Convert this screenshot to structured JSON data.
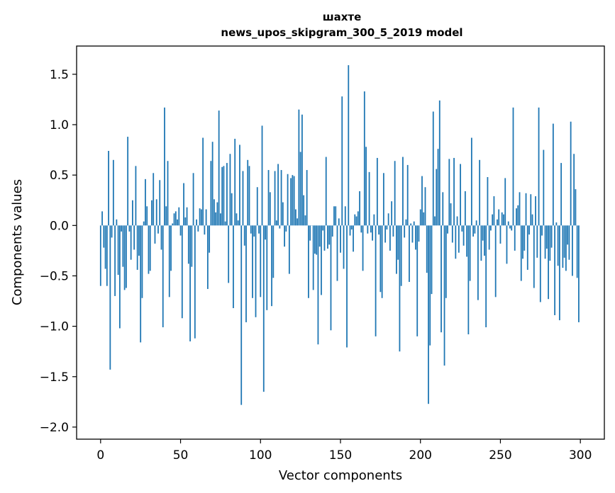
{
  "chart_data": {
    "type": "bar",
    "title": "шахте",
    "subtitle": "news_upos_skipgram_300_5_2019 model",
    "xlabel": "Vector components",
    "ylabel": "Components values",
    "xlim": [
      -15,
      315
    ],
    "ylim": [
      -2.12,
      1.78
    ],
    "xticks": [
      0,
      50,
      100,
      150,
      200,
      250,
      300
    ],
    "yticks": [
      -2.0,
      -1.5,
      -1.0,
      -0.5,
      0.0,
      0.5,
      1.0,
      1.5
    ],
    "ytick_labels": [
      "−2.0",
      "−1.5",
      "−1.0",
      "−0.5",
      "0.0",
      "0.5",
      "1.0",
      "1.5"
    ],
    "bar_color": "#1f77b4",
    "grid": false,
    "legend": "none",
    "values": [
      -0.6,
      0.14,
      -0.22,
      -0.43,
      -0.6,
      0.74,
      -1.43,
      -0.12,
      0.65,
      -0.7,
      0.06,
      -0.49,
      -1.02,
      -0.06,
      -0.41,
      -0.64,
      -0.62,
      0.88,
      -0.06,
      -0.34,
      0.25,
      -0.24,
      0.59,
      -0.44,
      -0.3,
      -1.16,
      -0.72,
      0.04,
      0.46,
      0.19,
      -0.48,
      -0.45,
      0.25,
      0.52,
      -0.18,
      0.26,
      -0.08,
      0.45,
      -0.24,
      -1.01,
      1.17,
      0.19,
      0.64,
      -0.71,
      -0.45,
      0.02,
      0.12,
      0.14,
      0.06,
      0.18,
      -0.1,
      -0.92,
      0.42,
      0.08,
      0.18,
      -0.38,
      -1.15,
      -0.41,
      0.52,
      -1.12,
      0.06,
      -0.06,
      0.17,
      0.16,
      0.87,
      -0.09,
      0.16,
      -0.63,
      -0.27,
      0.64,
      0.83,
      0.26,
      0.13,
      0.23,
      1.14,
      0.12,
      0.58,
      0.59,
      0.04,
      0.62,
      -0.57,
      0.71,
      0.32,
      -0.82,
      0.86,
      0.12,
      0.05,
      0.8,
      -1.78,
      0.54,
      -0.2,
      -0.96,
      0.65,
      0.59,
      -0.08,
      -0.72,
      -0.11,
      -0.91,
      0.38,
      -0.08,
      -0.71,
      0.99,
      -1.65,
      -0.14,
      -0.84,
      0.55,
      0.33,
      -0.8,
      -0.52,
      0.54,
      0.05,
      0.61,
      -0.03,
      0.55,
      0.23,
      -0.21,
      -0.06,
      0.51,
      -0.48,
      0.47,
      0.5,
      0.49,
      0.16,
      0.07,
      1.15,
      0.73,
      1.1,
      0.3,
      0.1,
      0.55,
      -0.72,
      -0.15,
      0.0,
      -0.64,
      -0.28,
      -0.29,
      -1.18,
      -0.21,
      -0.69,
      -0.05,
      -0.25,
      0.68,
      -0.23,
      -0.19,
      -1.04,
      -0.11,
      0.19,
      0.19,
      -0.55,
      0.07,
      -0.27,
      1.28,
      -0.43,
      0.19,
      -1.21,
      1.59,
      -0.1,
      -0.04,
      -0.26,
      0.11,
      0.09,
      0.14,
      0.34,
      -0.07,
      -0.45,
      1.33,
      0.78,
      -0.08,
      0.53,
      -0.07,
      -0.15,
      0.11,
      -1.1,
      0.67,
      -0.09,
      -0.66,
      -0.72,
      0.52,
      -0.17,
      -0.04,
      0.12,
      -0.25,
      0.24,
      -0.11,
      0.64,
      -0.48,
      -0.34,
      -1.25,
      -0.6,
      0.68,
      -0.12,
      0.06,
      0.6,
      -0.56,
      0.02,
      -0.17,
      0.04,
      -0.24,
      -1.1,
      -0.16,
      0.16,
      0.49,
      0.13,
      0.38,
      -0.47,
      -1.77,
      -1.19,
      -0.68,
      1.13,
      0.09,
      0.56,
      0.76,
      1.24,
      -1.06,
      0.33,
      -1.39,
      -0.72,
      -0.08,
      0.66,
      0.22,
      -0.17,
      0.67,
      -0.33,
      0.09,
      -0.27,
      0.61,
      -0.06,
      -0.2,
      0.34,
      -0.31,
      -1.08,
      -0.55,
      0.87,
      -0.11,
      -0.08,
      0.05,
      -0.74,
      0.65,
      -0.35,
      -0.15,
      -0.3,
      -1.01,
      0.48,
      -0.24,
      -0.05,
      0.11,
      0.29,
      -0.71,
      0.06,
      0.16,
      -0.18,
      0.13,
      0.11,
      0.47,
      -0.38,
      0.04,
      -0.03,
      -0.05,
      1.17,
      -0.25,
      0.17,
      0.2,
      0.33,
      -0.55,
      -0.33,
      -0.25,
      0.32,
      -0.44,
      -0.09,
      0.31,
      0.11,
      -0.62,
      0.29,
      -0.32,
      1.17,
      -0.76,
      -0.1,
      0.75,
      -0.33,
      -0.23,
      -0.73,
      -0.35,
      -0.22,
      1.01,
      -0.89,
      0.03,
      -0.4,
      -0.94,
      0.62,
      -0.42,
      -0.32,
      -0.45,
      -0.19,
      -0.34,
      1.03,
      -0.5,
      0.71,
      0.36,
      -0.52,
      -0.96
    ]
  }
}
